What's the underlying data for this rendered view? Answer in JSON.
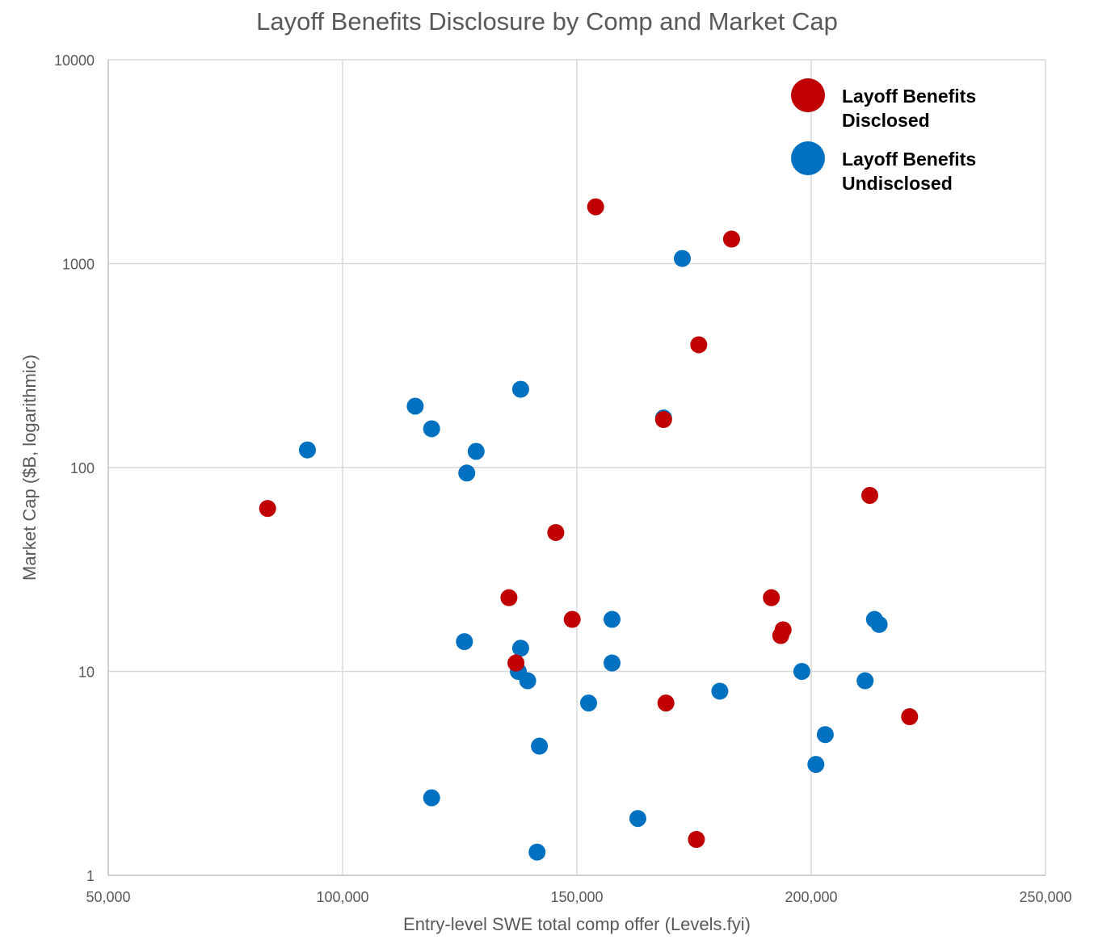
{
  "chart_data": {
    "type": "scatter",
    "title": "Layoff Benefits Disclosure by Comp and Market Cap",
    "xlabel": "Entry-level SWE total comp offer (Levels.fyi)",
    "ylabel": "Market Cap ($B, logarithmic)",
    "xlim": [
      50000,
      250000
    ],
    "ylim": [
      1,
      10000
    ],
    "yscale": "log",
    "grid": true,
    "legend_position": "top-right",
    "x_ticks": [
      "50,000",
      "100,000",
      "150,000",
      "200,000",
      "250,000"
    ],
    "x_tick_values": [
      50000,
      100000,
      150000,
      200000,
      250000
    ],
    "y_ticks": [
      "1",
      "10",
      "100",
      "1000",
      "10000"
    ],
    "y_tick_values": [
      1,
      10,
      100,
      1000,
      10000
    ],
    "series": [
      {
        "name": "Layoff Benefits Undisclosed",
        "color": "#0070c0",
        "points": [
          [
            92500,
            122
          ],
          [
            115500,
            200
          ],
          [
            119000,
            155
          ],
          [
            126500,
            94
          ],
          [
            128500,
            120
          ],
          [
            138000,
            242
          ],
          [
            126000,
            14
          ],
          [
            138000,
            13
          ],
          [
            137500,
            10
          ],
          [
            139500,
            9
          ],
          [
            142000,
            4.3
          ],
          [
            141500,
            1.3
          ],
          [
            119000,
            2.4
          ],
          [
            152500,
            7
          ],
          [
            157500,
            18
          ],
          [
            157500,
            11
          ],
          [
            163000,
            1.9
          ],
          [
            168500,
            175
          ],
          [
            172500,
            1060
          ],
          [
            180500,
            8
          ],
          [
            198000,
            10
          ],
          [
            201000,
            3.5
          ],
          [
            203000,
            4.9
          ],
          [
            211500,
            9
          ],
          [
            213500,
            18
          ],
          [
            214500,
            17
          ]
        ]
      },
      {
        "name": "Layoff Benefits Disclosed",
        "color": "#c00000",
        "points": [
          [
            84000,
            63
          ],
          [
            135500,
            23
          ],
          [
            137000,
            11
          ],
          [
            145500,
            48
          ],
          [
            149000,
            18
          ],
          [
            154000,
            1900
          ],
          [
            168500,
            172
          ],
          [
            169000,
            7
          ],
          [
            175500,
            1.5
          ],
          [
            176000,
            400
          ],
          [
            183000,
            1320
          ],
          [
            191500,
            23
          ],
          [
            194000,
            16
          ],
          [
            193500,
            15
          ],
          [
            212500,
            73
          ],
          [
            221000,
            6
          ]
        ]
      }
    ],
    "legend": [
      {
        "lines": [
          "Layoff Benefits",
          "Disclosed"
        ],
        "color": "#c00000"
      },
      {
        "lines": [
          "Layoff Benefits",
          "Undisclosed"
        ],
        "color": "#0070c0"
      }
    ]
  }
}
